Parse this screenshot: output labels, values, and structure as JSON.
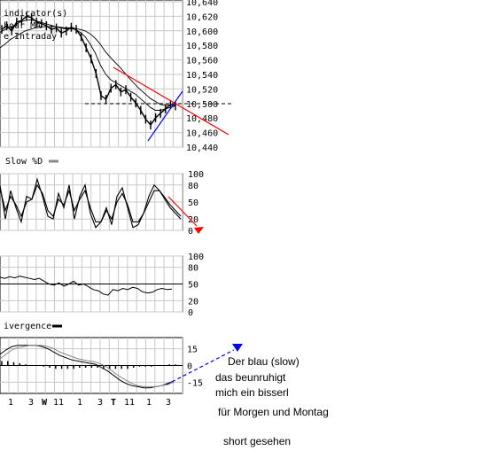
{
  "chart_data": [
    {
      "type": "line",
      "name": "price",
      "ylim": [
        10440,
        10640
      ],
      "y_ticks": [
        "10,640",
        "10,620",
        "10,600",
        "10,580",
        "10,560",
        "10,540",
        "10,520",
        "10,500",
        "10,480",
        "10,460",
        "10,440"
      ],
      "legend_fragments": [
        "indicator(s)",
        "hour MA",
        "e Intraday"
      ],
      "series": [
        {
          "name": "Intraday",
          "color": "#000000",
          "values": [
            10600,
            10605,
            10598,
            10610,
            10612,
            10618,
            10616,
            10610,
            10608,
            10605,
            10600,
            10602,
            10595,
            10598,
            10603,
            10600,
            10590,
            10575,
            10560,
            10540,
            10510,
            10505,
            10520,
            10525,
            10515,
            10518,
            10508,
            10500,
            10490,
            10478,
            10470,
            10480,
            10486,
            10492,
            10498,
            10496
          ]
        },
        {
          "name": "MA fast",
          "color": "#000000",
          "values": [
            10596,
            10600,
            10603,
            10606,
            10610,
            10612,
            10613,
            10612,
            10610,
            10608,
            10606,
            10604,
            10602,
            10601,
            10601,
            10600,
            10596,
            10590,
            10580,
            10568,
            10552,
            10540,
            10532,
            10528,
            10524,
            10520,
            10516,
            10512,
            10506,
            10500,
            10494,
            10490,
            10490,
            10492,
            10494,
            10496
          ]
        },
        {
          "name": "MA slow",
          "color": "#000000",
          "values": [
            10575,
            10580,
            10586,
            10590,
            10594,
            10598,
            10600,
            10602,
            10603,
            10604,
            10604,
            10604,
            10603,
            10602,
            10602,
            10601,
            10600,
            10598,
            10594,
            10588,
            10580,
            10570,
            10562,
            10555,
            10548,
            10540,
            10532,
            10525,
            10518,
            10512,
            10506,
            10502,
            10498,
            10497,
            10497,
            10497
          ]
        }
      ],
      "annotations": [
        {
          "type": "downtrend-line",
          "color": "#ff0000"
        },
        {
          "type": "uptrend-line",
          "color": "#0000ff"
        },
        {
          "type": "horizontal-dashed-line",
          "y": 10500,
          "color": "#000000"
        }
      ]
    },
    {
      "type": "line",
      "name": "slow-stochastic",
      "title": "Slow %D",
      "ylim": [
        0,
        100
      ],
      "y_ticks": [
        "100",
        "80",
        "50",
        "20",
        "0"
      ],
      "series": [
        {
          "name": "%K",
          "color": "#000000",
          "values": [
            80,
            20,
            70,
            40,
            15,
            60,
            55,
            90,
            60,
            25,
            20,
            65,
            40,
            80,
            20,
            60,
            80,
            30,
            5,
            15,
            40,
            10,
            60,
            75,
            40,
            5,
            10,
            30,
            60,
            80,
            70,
            55,
            40,
            30,
            20
          ]
        },
        {
          "name": "%D",
          "color": "#000000",
          "values": [
            75,
            35,
            60,
            45,
            25,
            50,
            55,
            80,
            65,
            35,
            25,
            55,
            45,
            70,
            35,
            55,
            70,
            40,
            15,
            15,
            35,
            20,
            50,
            65,
            45,
            15,
            15,
            30,
            50,
            70,
            70,
            58,
            45,
            35,
            25
          ]
        }
      ],
      "annotations": [
        {
          "type": "arrow",
          "color": "#ff0000",
          "direction": "down"
        }
      ]
    },
    {
      "type": "line",
      "name": "second-oscillator",
      "ylim": [
        0,
        100
      ],
      "y_ticks": [
        "100",
        "80",
        "50",
        "20",
        "0"
      ],
      "series": [
        {
          "name": "oscillator",
          "color": "#000000",
          "values": [
            62,
            60,
            63,
            61,
            64,
            62,
            60,
            58,
            60,
            55,
            50,
            48,
            52,
            46,
            50,
            55,
            48,
            50,
            45,
            40,
            38,
            32,
            30,
            40,
            38,
            42,
            40,
            44,
            42,
            36,
            34,
            35,
            40,
            42,
            40,
            41
          ]
        }
      ],
      "reference_line": 50
    },
    {
      "type": "line",
      "name": "macd-divergence",
      "title": "ivergence",
      "ylim": [
        -25,
        25
      ],
      "y_ticks": [
        "15",
        "0",
        "-15"
      ],
      "series": [
        {
          "name": "MACD",
          "color": "#000000",
          "values": [
            10,
            14,
            17,
            18,
            18,
            18,
            18,
            17,
            15,
            12,
            9,
            7,
            5,
            4,
            3,
            2,
            1,
            -2,
            -5,
            -9,
            -13,
            -16,
            -18,
            -19,
            -20,
            -20,
            -19,
            -18,
            -16,
            -14
          ]
        },
        {
          "name": "signal",
          "color": "#000000",
          "values": [
            6,
            10,
            14,
            16,
            17,
            18,
            18,
            18,
            17,
            15,
            12,
            10,
            8,
            6,
            5,
            4,
            3,
            1,
            -2,
            -6,
            -10,
            -13,
            -16,
            -18,
            -19,
            -19,
            -19,
            -18,
            -17,
            -15
          ]
        }
      ],
      "histogram": [
        4,
        4,
        3,
        2,
        1,
        0,
        0,
        -1,
        -2,
        -3,
        -3,
        -3,
        -3,
        -2,
        -2,
        -2,
        -2,
        -3,
        -3,
        -3,
        -3,
        -3,
        -2,
        -1,
        -1,
        -1,
        0,
        0,
        1,
        1
      ],
      "x_ticks": [
        "1",
        "3",
        "W",
        "11",
        "1",
        "3",
        "T",
        "11",
        "1",
        "3"
      ],
      "annotations": [
        {
          "type": "dashed-arrow",
          "color": "#0000ff",
          "direction": "up-right"
        }
      ]
    }
  ],
  "notes": [
    "Der blau (slow)",
    "das beunruhigt",
    "mich ein bisserl",
    "für Morgen und Montag",
    "short gesehen"
  ]
}
